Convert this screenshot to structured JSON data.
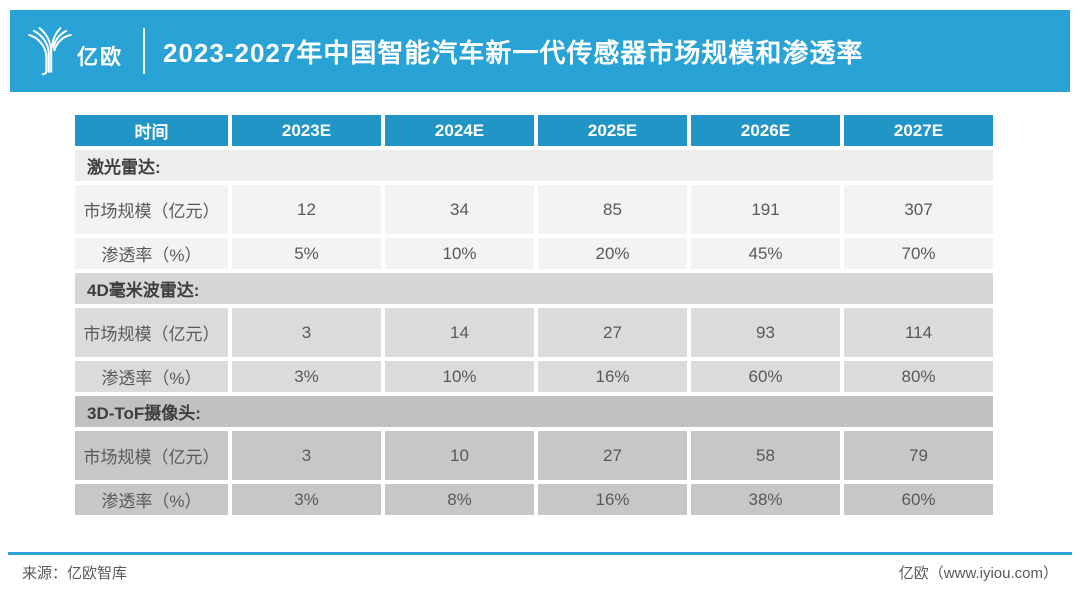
{
  "header": {
    "logo_text": "亿欧",
    "title": "2023-2027年中国智能汽车新一代传感器市场规模和渗透率"
  },
  "table": {
    "columns": [
      "时间",
      "2023E",
      "2024E",
      "2025E",
      "2026E",
      "2027E"
    ],
    "sections": [
      {
        "name": "激光雷达:",
        "header_bg": "#ededed",
        "row_bg": "#f3f3f3",
        "rows": [
          {
            "label": "市场规模（亿元）",
            "values": [
              "12",
              "34",
              "85",
              "191",
              "307"
            ]
          },
          {
            "label": "渗透率（%）",
            "values": [
              "5%",
              "10%",
              "20%",
              "45%",
              "70%"
            ]
          }
        ]
      },
      {
        "name": "4D毫米波雷达:",
        "header_bg": "#d6d6d6",
        "row_bg": "#dbdbdb",
        "rows": [
          {
            "label": "市场规模（亿元）",
            "values": [
              "3",
              "14",
              "27",
              "93",
              "114"
            ]
          },
          {
            "label": "渗透率（%）",
            "values": [
              "3%",
              "10%",
              "16%",
              "60%",
              "80%"
            ]
          }
        ]
      },
      {
        "name": "3D-ToF摄像头:",
        "header_bg": "#c1c1c1",
        "row_bg": "#c7c7c7",
        "rows": [
          {
            "label": "市场规模（亿元）",
            "values": [
              "3",
              "10",
              "27",
              "58",
              "79"
            ]
          },
          {
            "label": "渗透率（%）",
            "values": [
              "3%",
              "8%",
              "16%",
              "38%",
              "60%"
            ]
          }
        ]
      }
    ]
  },
  "footer": {
    "source": "来源：亿欧智库",
    "site": "亿欧（www.iyiou.com）"
  },
  "colors": {
    "banner_blue": "#29a3d6",
    "table_header_blue": "#2095c6",
    "body_text_grey": "#595959"
  },
  "chart_data": {
    "type": "table",
    "title": "2023-2027年中国智能汽车新一代传感器市场规模和渗透率",
    "categories": [
      "2023E",
      "2024E",
      "2025E",
      "2026E",
      "2027E"
    ],
    "series": [
      {
        "name": "激光雷达 市场规模（亿元）",
        "values": [
          12,
          34,
          85,
          191,
          307
        ]
      },
      {
        "name": "激光雷达 渗透率（%）",
        "values": [
          5,
          10,
          20,
          45,
          70
        ]
      },
      {
        "name": "4D毫米波雷达 市场规模（亿元）",
        "values": [
          3,
          14,
          27,
          93,
          114
        ]
      },
      {
        "name": "4D毫米波雷达 渗透率（%）",
        "values": [
          3,
          10,
          16,
          60,
          80
        ]
      },
      {
        "name": "3D-ToF摄像头 市场规模（亿元）",
        "values": [
          3,
          10,
          27,
          58,
          79
        ]
      },
      {
        "name": "3D-ToF摄像头 渗透率（%）",
        "values": [
          3,
          8,
          16,
          38,
          60
        ]
      }
    ],
    "source": "亿欧智库",
    "legend_position": "none",
    "grid": false
  }
}
